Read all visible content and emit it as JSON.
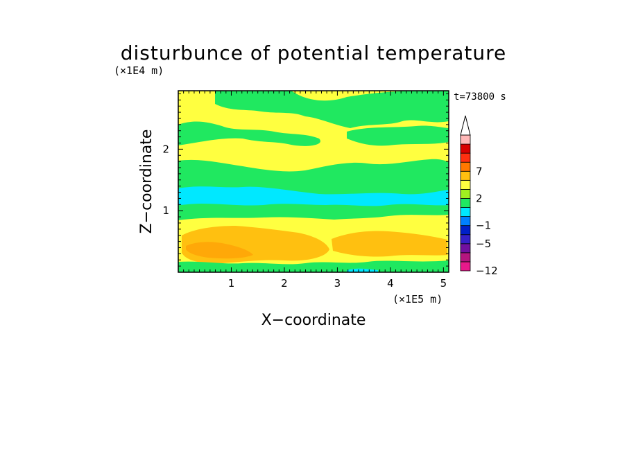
{
  "chart_data": {
    "type": "heatmap",
    "title": "disturbunce of potential temperature",
    "xlabel": "X−coordinate",
    "ylabel": "Z−coordinate",
    "x_unit": "(×1E5 m)",
    "y_unit": "(×1E4 m)",
    "time_label": "t=73800 s",
    "xlim": [
      0,
      5.1
    ],
    "ylim": [
      0,
      2.95
    ],
    "x_ticks": [
      {
        "value": 1,
        "label": "1"
      },
      {
        "value": 2,
        "label": "2"
      },
      {
        "value": 3,
        "label": "3"
      },
      {
        "value": 4,
        "label": "4"
      },
      {
        "value": 5,
        "label": "5"
      }
    ],
    "y_ticks": [
      {
        "value": 1,
        "label": "1"
      },
      {
        "value": 2,
        "label": "2"
      }
    ],
    "colorbar": {
      "levels": [
        -12,
        -10,
        -7,
        -5,
        -3,
        -1,
        0,
        1,
        2,
        3,
        5,
        7,
        9,
        12
      ],
      "colors": [
        "#e8198b",
        "#b4157f",
        "#7010a0",
        "#3520c8",
        "#0020c8",
        "#0080ff",
        "#00e8ff",
        "#20e860",
        "#a0f020",
        "#ffff40",
        "#ffc010",
        "#ff7800",
        "#ff3010",
        "#d80000",
        "#ffb8b8"
      ],
      "extend_max": true,
      "labels": [
        {
          "value": -12,
          "label": "−12"
        },
        {
          "value": -5,
          "label": "−5"
        },
        {
          "value": -1,
          "label": "−1"
        },
        {
          "value": 2,
          "label": "2"
        },
        {
          "value": 7,
          "label": "7"
        }
      ]
    },
    "field_layers": [
      {
        "level": "yellow_background",
        "color": "#ffff40"
      },
      {
        "level": "green_bands",
        "color": "#20e860"
      },
      {
        "level": "cyan_band",
        "color": "#00e8ff"
      },
      {
        "level": "orange_patches",
        "color": "#ffc010"
      },
      {
        "level": "dark_orange_core",
        "color": "#ffa808"
      }
    ]
  }
}
